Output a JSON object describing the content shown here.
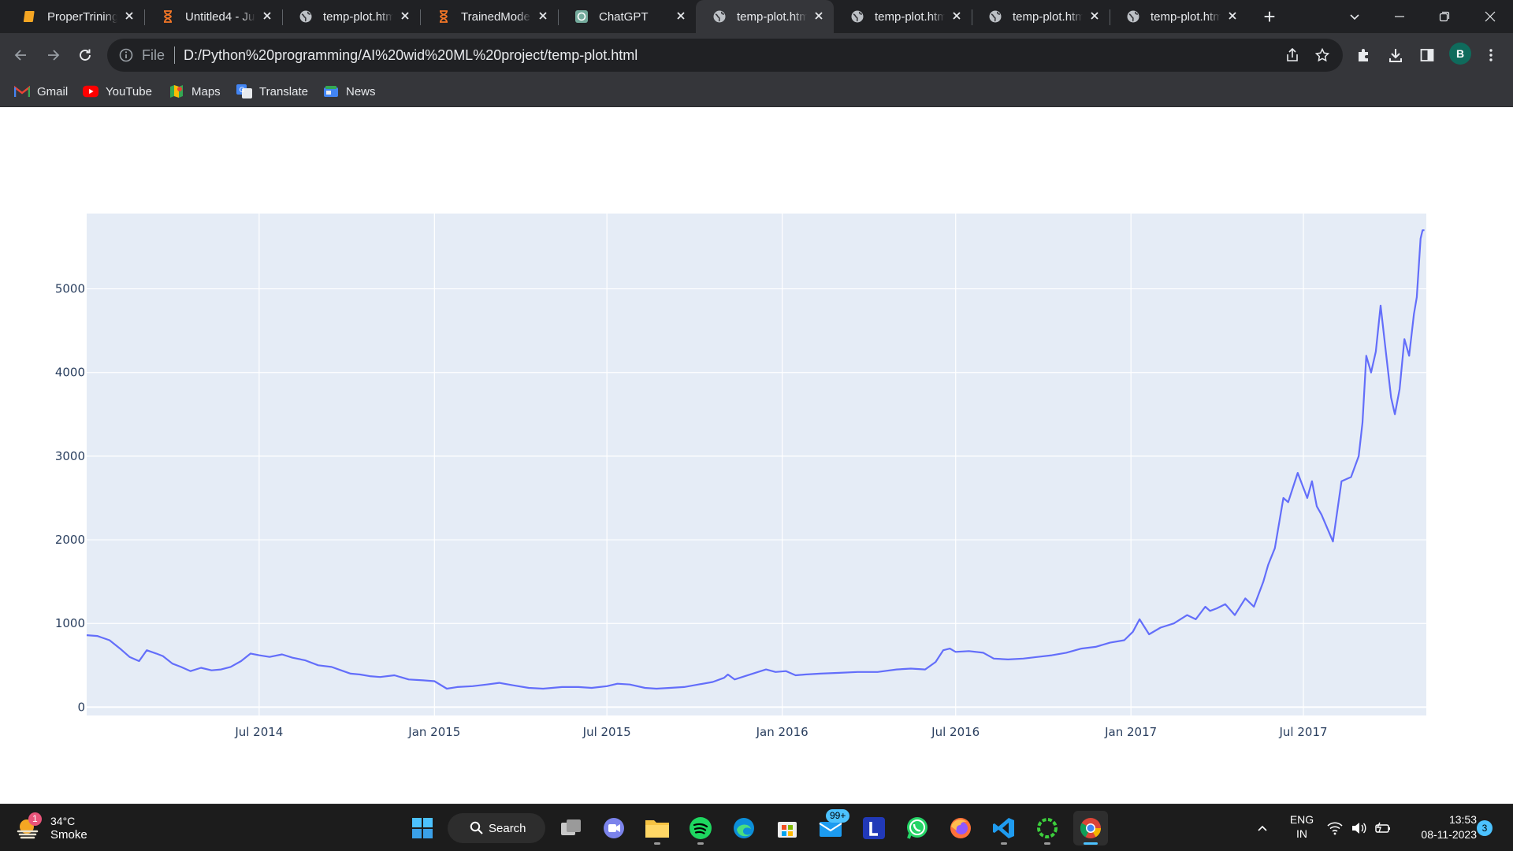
{
  "browser": {
    "tabs": [
      {
        "title": "ProperTrining",
        "icon": "notebook-icon",
        "active": false
      },
      {
        "title": "Untitled4 - Ju",
        "icon": "jupyter-hourglass-icon",
        "active": false
      },
      {
        "title": "temp-plot.htm",
        "icon": "globe-icon",
        "active": false
      },
      {
        "title": "TrainedModel",
        "icon": "jupyter-hourglass-icon",
        "active": false
      },
      {
        "title": "ChatGPT",
        "icon": "chatgpt-icon",
        "active": false
      },
      {
        "title": "temp-plot.htm",
        "icon": "globe-icon",
        "active": true
      },
      {
        "title": "temp-plot.htm",
        "icon": "globe-icon",
        "active": false
      },
      {
        "title": "temp-plot.htm",
        "icon": "globe-icon",
        "active": false
      },
      {
        "title": "temp-plot.htm",
        "icon": "globe-icon",
        "active": false
      }
    ],
    "new_tab_label": "+",
    "address": {
      "scheme_label": "File",
      "url": "D:/Python%20programming/AI%20wid%20ML%20project/temp-plot.html"
    },
    "profile_initial": "B",
    "bookmarks": [
      {
        "label": "Gmail",
        "icon": "gmail-icon"
      },
      {
        "label": "YouTube",
        "icon": "youtube-icon"
      },
      {
        "label": "Maps",
        "icon": "maps-icon"
      },
      {
        "label": "Translate",
        "icon": "translate-icon"
      },
      {
        "label": "News",
        "icon": "news-icon"
      }
    ]
  },
  "chart_data": {
    "type": "line",
    "title": "",
    "xlabel": "",
    "ylabel": "",
    "x_tick_labels": [
      "Jul 2014",
      "Jan 2015",
      "Jul 2015",
      "Jan 2016",
      "Jul 2016",
      "Jan 2017",
      "Jul 2017"
    ],
    "x_ticks": [
      "2014-07-01",
      "2015-01-01",
      "2015-07-01",
      "2016-01-01",
      "2016-07-01",
      "2017-01-01",
      "2017-07-01"
    ],
    "y_tick_labels": [
      "0",
      "1000",
      "2000",
      "3000",
      "4000",
      "5000"
    ],
    "y_ticks": [
      0,
      1000,
      2000,
      3000,
      4000,
      5000
    ],
    "xlim": [
      "2014-01-01",
      "2017-11-07"
    ],
    "ylim": [
      -100,
      5900
    ],
    "grid": true,
    "line_color": "#636efa",
    "plot_bgcolor": "#e5ecf6",
    "series": [
      {
        "x": [
          "2014-01-01",
          "2014-01-12",
          "2014-01-25",
          "2014-02-05",
          "2014-02-15",
          "2014-02-25",
          "2014-03-05",
          "2014-03-15",
          "2014-03-22",
          "2014-04-01",
          "2014-04-10",
          "2014-04-20",
          "2014-05-01",
          "2014-05-12",
          "2014-05-22",
          "2014-06-01",
          "2014-06-12",
          "2014-06-22",
          "2014-07-01",
          "2014-07-12",
          "2014-07-25",
          "2014-08-05",
          "2014-08-18",
          "2014-09-01",
          "2014-09-15",
          "2014-09-25",
          "2014-10-05",
          "2014-10-15",
          "2014-10-25",
          "2014-11-05",
          "2014-11-20",
          "2014-12-05",
          "2014-12-20",
          "2015-01-01",
          "2015-01-14",
          "2015-01-25",
          "2015-02-10",
          "2015-02-25",
          "2015-03-10",
          "2015-03-25",
          "2015-04-10",
          "2015-04-25",
          "2015-05-15",
          "2015-06-01",
          "2015-06-15",
          "2015-07-01",
          "2015-07-12",
          "2015-07-25",
          "2015-08-10",
          "2015-08-22",
          "2015-09-05",
          "2015-09-20",
          "2015-10-05",
          "2015-10-20",
          "2015-11-01",
          "2015-11-05",
          "2015-11-12",
          "2015-11-20",
          "2015-12-01",
          "2015-12-15",
          "2015-12-25",
          "2016-01-05",
          "2016-01-15",
          "2016-01-25",
          "2016-02-10",
          "2016-03-01",
          "2016-03-20",
          "2016-04-10",
          "2016-04-30",
          "2016-05-15",
          "2016-05-30",
          "2016-06-10",
          "2016-06-18",
          "2016-06-25",
          "2016-07-01",
          "2016-07-15",
          "2016-07-30",
          "2016-08-10",
          "2016-08-25",
          "2016-09-10",
          "2016-09-25",
          "2016-10-10",
          "2016-10-25",
          "2016-11-10",
          "2016-11-25",
          "2016-12-10",
          "2016-12-25",
          "2017-01-03",
          "2017-01-10",
          "2017-01-20",
          "2017-02-01",
          "2017-02-15",
          "2017-03-01",
          "2017-03-10",
          "2017-03-20",
          "2017-03-25",
          "2017-04-01",
          "2017-04-10",
          "2017-04-20",
          "2017-05-01",
          "2017-05-10",
          "2017-05-20",
          "2017-05-25",
          "2017-06-01",
          "2017-06-10",
          "2017-06-15",
          "2017-06-25",
          "2017-07-05",
          "2017-07-10",
          "2017-07-15",
          "2017-07-20",
          "2017-08-01",
          "2017-08-10",
          "2017-08-20",
          "2017-08-28",
          "2017-09-01",
          "2017-09-05",
          "2017-09-10",
          "2017-09-15",
          "2017-09-20",
          "2017-09-25",
          "2017-10-01",
          "2017-10-05",
          "2017-10-10",
          "2017-10-15",
          "2017-10-20",
          "2017-10-25",
          "2017-10-28",
          "2017-11-01",
          "2017-11-03",
          "2017-11-05"
        ],
        "y": [
          860,
          850,
          800,
          700,
          600,
          550,
          680,
          640,
          610,
          520,
          480,
          430,
          470,
          440,
          450,
          480,
          550,
          640,
          620,
          600,
          630,
          590,
          560,
          500,
          480,
          440,
          400,
          390,
          370,
          360,
          380,
          330,
          320,
          310,
          220,
          240,
          250,
          270,
          290,
          260,
          230,
          220,
          240,
          240,
          230,
          250,
          280,
          270,
          230,
          220,
          230,
          240,
          270,
          300,
          350,
          390,
          330,
          360,
          400,
          450,
          420,
          430,
          380,
          390,
          400,
          410,
          420,
          420,
          450,
          460,
          450,
          540,
          680,
          700,
          660,
          670,
          650,
          580,
          570,
          580,
          600,
          620,
          650,
          700,
          720,
          770,
          800,
          900,
          1050,
          870,
          950,
          1000,
          1100,
          1050,
          1200,
          1150,
          1180,
          1230,
          1100,
          1300,
          1200,
          1500,
          1700,
          1900,
          2500,
          2450,
          2800,
          2500,
          2700,
          2400,
          2300,
          1980,
          2700,
          2750,
          3000,
          3400,
          4200,
          4000,
          4250,
          4800,
          4300,
          3700,
          3500,
          3800,
          4400,
          4200,
          4700,
          4900,
          5600,
          5700,
          5700
        ]
      }
    ]
  },
  "taskbar": {
    "weather": {
      "temp": "34°C",
      "condition": "Smoke",
      "badge": "1"
    },
    "search_label": "Search",
    "mail_badge": "99+",
    "lang_line1": "ENG",
    "lang_line2": "IN",
    "time": "13:53",
    "date": "08-11-2023",
    "notification_count": "3"
  }
}
